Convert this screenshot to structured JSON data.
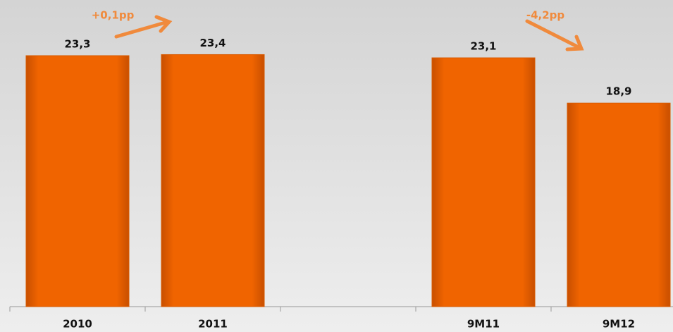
{
  "chart_data": {
    "type": "bar",
    "categories": [
      "2010",
      "2011",
      null,
      "9M11",
      "9M12"
    ],
    "values": [
      23.3,
      23.4,
      null,
      23.1,
      18.9
    ],
    "value_labels": [
      "23,3",
      "23,4",
      null,
      "23,1",
      "18,9"
    ],
    "color": "#f06400",
    "ylim": [
      0,
      25
    ],
    "annotations": [
      "+0,1pp",
      "-4,2pp"
    ]
  }
}
